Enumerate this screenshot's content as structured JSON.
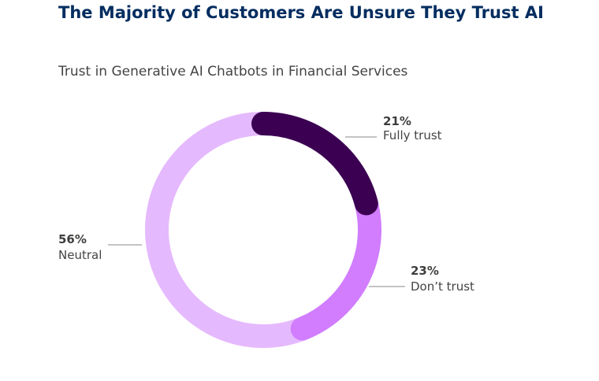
{
  "headline": "The Majority of Customers Are Unsure They Trust AI",
  "chart_data": {
    "type": "pie",
    "donut": true,
    "title": "Trust in Generative AI Chatbots in Financial Services",
    "categories": [
      "Fully trust",
      "Don’t trust",
      "Neutral"
    ],
    "values": [
      21,
      23,
      56
    ],
    "labels": [
      "21%",
      "23%",
      "56%"
    ],
    "colors": [
      "#3b0052",
      "#d17dfe",
      "#e5b9fe"
    ],
    "start_angle": "top, clockwise"
  }
}
